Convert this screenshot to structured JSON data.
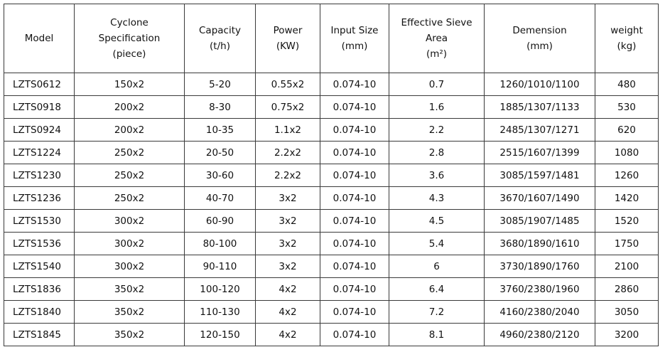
{
  "headers": [
    [
      "Model"
    ],
    [
      "Cyclone",
      "Specification",
      "(piece)"
    ],
    [
      "Capacity",
      "(t/h)"
    ],
    [
      "Power",
      "(KW)"
    ],
    [
      "Input Size",
      "(mm)"
    ],
    [
      "Effective Sieve",
      "Area",
      "(m²)"
    ],
    [
      "Demension",
      "(mm)"
    ],
    [
      "weight",
      "(kg)"
    ]
  ],
  "rows": [
    [
      "LZTS0612",
      "150x2",
      "5-20",
      "0.55x2",
      "0.074-10",
      "0.7",
      "1260/1010/1100",
      "480"
    ],
    [
      "LZTS0918",
      "200x2",
      "8-30",
      "0.75x2",
      "0.074-10",
      "1.6",
      "1885/1307/1133",
      "530"
    ],
    [
      "LZTS0924",
      "200x2",
      "10-35",
      "1.1x2",
      "0.074-10",
      "2.2",
      "2485/1307/1271",
      "620"
    ],
    [
      "LZTS1224",
      "250x2",
      "20-50",
      "2.2x2",
      "0.074-10",
      "2.8",
      "2515/1607/1399",
      "1080"
    ],
    [
      "LZTS1230",
      "250x2",
      "30-60",
      "2.2x2",
      "0.074-10",
      "3.6",
      "3085/1597/1481",
      "1260"
    ],
    [
      "LZTS1236",
      "250x2",
      "40-70",
      "3x2",
      "0.074-10",
      "4.3",
      "3670/1607/1490",
      "1420"
    ],
    [
      "LZTS1530",
      "300x2",
      "60-90",
      "3x2",
      "0.074-10",
      "4.5",
      "3085/1907/1485",
      "1520"
    ],
    [
      "LZTS1536",
      "300x2",
      "80-100",
      "3x2",
      "0.074-10",
      "5.4",
      "3680/1890/1610",
      "1750"
    ],
    [
      "LZTS1540",
      "300x2",
      "90-110",
      "3x2",
      "0.074-10",
      "6",
      "3730/1890/1760",
      "2100"
    ],
    [
      "LZTS1836",
      "350x2",
      "100-120",
      "4x2",
      "0.074-10",
      "6.4",
      "3760/2380/1960",
      "2860"
    ],
    [
      "LZTS1840",
      "350x2",
      "110-130",
      "4x2",
      "0.074-10",
      "7.2",
      "4160/2380/2040",
      "3050"
    ],
    [
      "LZTS1845",
      "350x2",
      "120-150",
      "4x2",
      "0.074-10",
      "8.1",
      "4960/2380/2120",
      "3200"
    ]
  ]
}
